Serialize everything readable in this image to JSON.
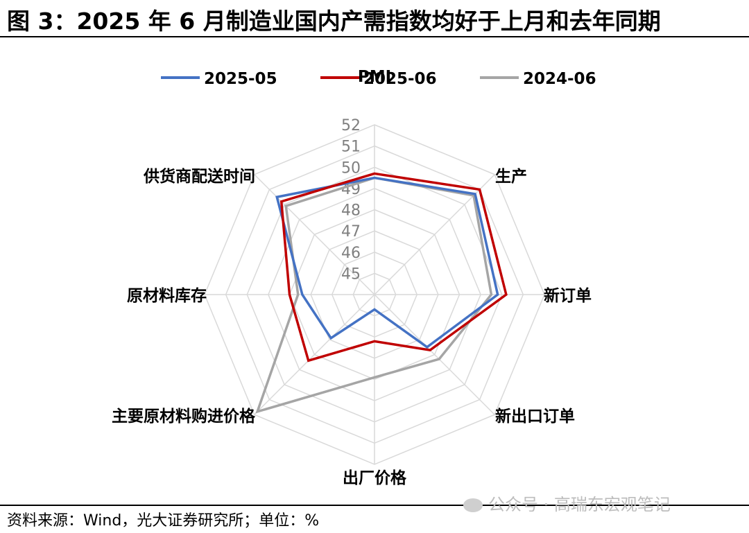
{
  "header": {
    "title": "图 3：2025 年 6 月制造业国内产需指数均好于上月和去年同期"
  },
  "footer": {
    "source": "资料来源：Wind，光大证券研究所；单位：%",
    "watermark": "公众号 · 高瑞东宏观笔记"
  },
  "chart_data": {
    "type": "radar",
    "axes": [
      "PMI",
      "生产",
      "新订单",
      "新出口订单",
      "出厂价格",
      "主要原材料购进价格",
      "原材料库存",
      "供货商配送时间"
    ],
    "r_min": 44,
    "r_max": 52,
    "tick_labels": [
      "45",
      "46",
      "47",
      "48",
      "49",
      "50",
      "51",
      "52"
    ],
    "legend_position": "top",
    "series": [
      {
        "name": "2025-05",
        "color": "#4472C4",
        "values": [
          49.5,
          50.7,
          49.8,
          47.5,
          44.7,
          46.9,
          47.4,
          50.5
        ]
      },
      {
        "name": "2025-06",
        "color": "#C00000",
        "values": [
          49.7,
          51.0,
          50.2,
          47.7,
          46.2,
          48.4,
          48.0,
          50.2
        ]
      },
      {
        "name": "2024-06",
        "color": "#A5A5A5",
        "values": [
          49.5,
          50.6,
          49.5,
          48.3,
          47.9,
          51.8,
          47.6,
          49.9
        ]
      }
    ]
  }
}
